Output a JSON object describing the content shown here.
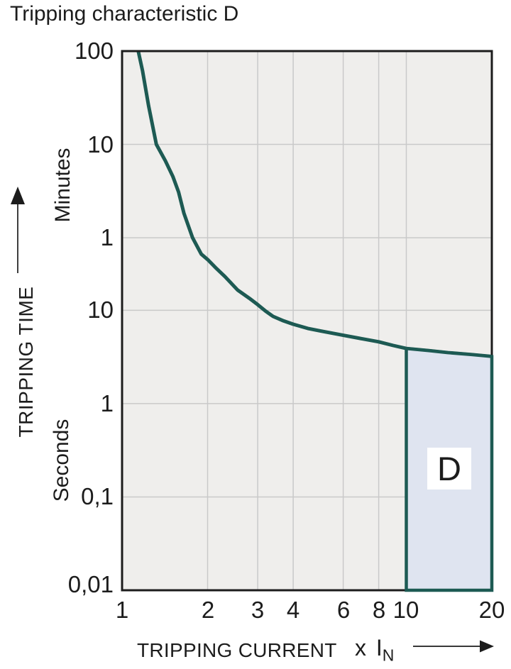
{
  "colors": {
    "text": "#1c1c1c",
    "axis": "#1c1c1c",
    "curve": "#1d5a53",
    "region_fill": "#dfe4f0",
    "plot_bg": "#efeeec",
    "grid": "#c9c9c9",
    "label_box_bg": "#ffffff"
  },
  "chart_data": {
    "type": "line",
    "title": "Tripping characteristic D",
    "xlabel": "TRIPPING CURRENT (x IN)",
    "ylabel": "TRIPPING TIME",
    "x_axis": {
      "title": "TRIPPING CURRENT",
      "multiplier": {
        "text": "x I",
        "sub": "N"
      },
      "scale": "log",
      "range": [
        1,
        20
      ],
      "ticks": [
        {
          "value": 1,
          "label": "1"
        },
        {
          "value": 2,
          "label": "2"
        },
        {
          "value": 3,
          "label": "3"
        },
        {
          "value": 4,
          "label": "4"
        },
        {
          "value": 6,
          "label": "6"
        },
        {
          "value": 8,
          "label": "8"
        },
        {
          "value": 10,
          "label": "10"
        },
        {
          "value": 20,
          "label": "20"
        }
      ]
    },
    "y_axis": {
      "title": "TRIPPING TIME",
      "scale": "log",
      "range_seconds": [
        0.01,
        6000
      ],
      "unit_sections": [
        {
          "label": "Minutes",
          "position": "upper"
        },
        {
          "label": "Seconds",
          "position": "lower"
        }
      ],
      "ticks": [
        {
          "seconds": 6000,
          "label": "100"
        },
        {
          "seconds": 600,
          "label": "10"
        },
        {
          "seconds": 60,
          "label": "1"
        },
        {
          "seconds": 10,
          "label": "10"
        },
        {
          "seconds": 1,
          "label": "1"
        },
        {
          "seconds": 0.1,
          "label": "0,1"
        },
        {
          "seconds": 0.01,
          "label": "0,01"
        }
      ]
    },
    "series": [
      {
        "name": "D tripping curve",
        "x_unit": "multiple of In",
        "y_unit": "seconds",
        "points": [
          [
            1.14,
            6000
          ],
          [
            1.18,
            3700
          ],
          [
            1.24,
            1550
          ],
          [
            1.32,
            600
          ],
          [
            1.42,
            400
          ],
          [
            1.51,
            270
          ],
          [
            1.58,
            185
          ],
          [
            1.65,
            110
          ],
          [
            1.77,
            60
          ],
          [
            1.9,
            40
          ],
          [
            2.0,
            35
          ],
          [
            2.15,
            28
          ],
          [
            2.3,
            23
          ],
          [
            2.55,
            16.5
          ],
          [
            2.8,
            13.5
          ],
          [
            3.0,
            11.5
          ],
          [
            3.2,
            9.8
          ],
          [
            3.4,
            8.6
          ],
          [
            3.7,
            7.7
          ],
          [
            4.0,
            7.1
          ],
          [
            4.5,
            6.4
          ],
          [
            5.0,
            6.0
          ],
          [
            6.0,
            5.4
          ],
          [
            7.0,
            4.95
          ],
          [
            8.0,
            4.6
          ],
          [
            9.0,
            4.2
          ],
          [
            10.0,
            3.9
          ],
          [
            12.0,
            3.7
          ],
          [
            14.0,
            3.52
          ],
          [
            17.0,
            3.35
          ],
          [
            20.0,
            3.2
          ]
        ]
      }
    ],
    "region": {
      "label": "D",
      "x_range": [
        10,
        20
      ],
      "bottom_seconds": 0.01,
      "top": "curve"
    },
    "grid": "on",
    "legend": "none"
  }
}
